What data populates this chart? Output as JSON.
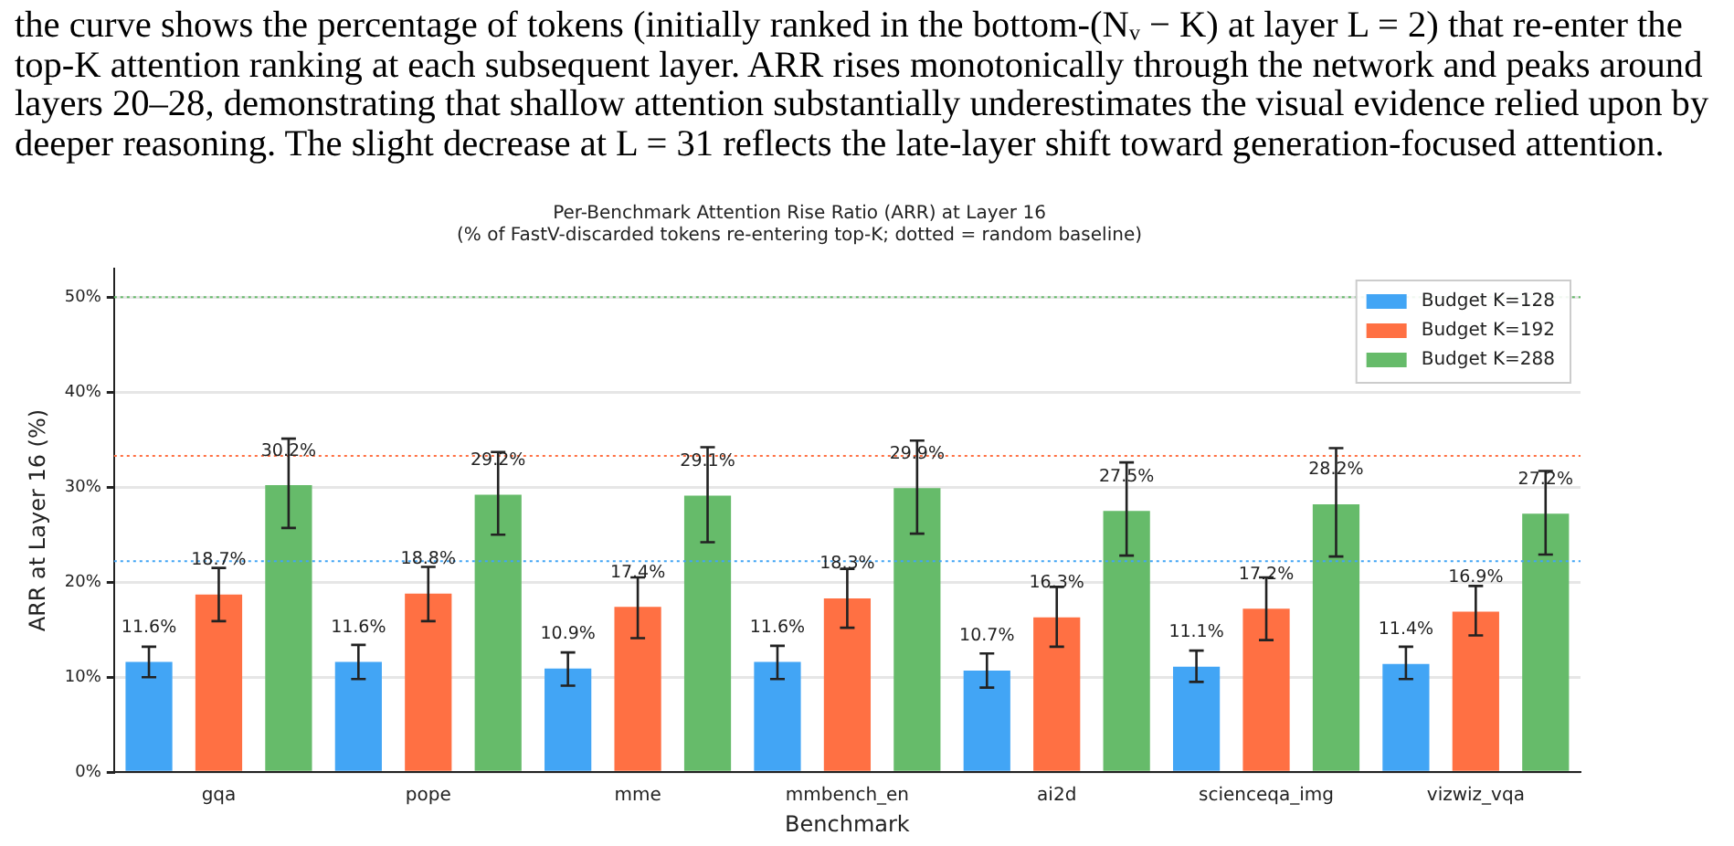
{
  "chart_data": {
    "type": "bar",
    "title": "Per-Benchmark Attention Rise Ratio (ARR) at Layer 16",
    "subtitle": "(% of FastV-discarded tokens re-entering top-K; dotted = random baseline)",
    "xlabel": "Benchmark",
    "ylabel": "ARR at Layer 16 (%)",
    "annotations": [
      "the curve shows the percentage of tokens (initially ranked in the bottom-(Nᵥ − K) at layer L = 2) that re-enter the",
      "top-K attention ranking at each subsequent layer. ARR rises monotonically through the network and peaks around",
      "layers 20–28, demonstrating that shallow attention substantially underestimates the visual evidence relied upon by",
      "deeper reasoning. The slight decrease at L = 31 reflects the late-layer shift toward generation-focused attention."
    ],
    "categories": [
      "gqa",
      "pope",
      "mme",
      "mmbench_en",
      "ai2d",
      "scienceqa_img",
      "vizwiz_vqa"
    ],
    "series": [
      {
        "name": "Budget K=128",
        "color": "#42a5f5",
        "values": [
          11.6,
          11.6,
          10.9,
          11.6,
          10.7,
          11.1,
          11.4
        ],
        "value_labels": [
          "11.6%",
          "11.6%",
          "10.9%",
          "11.6%",
          "10.7%",
          "11.1%",
          "11.4%"
        ],
        "errors": [
          [
            10.0,
            13.2
          ],
          [
            9.8,
            13.4
          ],
          [
            9.1,
            12.6
          ],
          [
            9.8,
            13.3
          ],
          [
            8.9,
            12.5
          ],
          [
            9.5,
            12.8
          ],
          [
            9.8,
            13.2
          ]
        ]
      },
      {
        "name": "Budget K=192",
        "color": "#ff7043",
        "values": [
          18.7,
          18.8,
          17.4,
          18.3,
          16.3,
          17.2,
          16.9
        ],
        "value_labels": [
          "18.7%",
          "18.8%",
          "17.4%",
          "18.3%",
          "16.3%",
          "17.2%",
          "16.9%"
        ],
        "errors": [
          [
            15.9,
            21.5
          ],
          [
            15.9,
            21.6
          ],
          [
            14.1,
            20.5
          ],
          [
            15.2,
            21.4
          ],
          [
            13.2,
            19.5
          ],
          [
            13.9,
            20.5
          ],
          [
            14.4,
            19.6
          ]
        ]
      },
      {
        "name": "Budget K=288",
        "color": "#66bb6a",
        "values": [
          30.2,
          29.2,
          29.1,
          29.9,
          27.5,
          28.2,
          27.2
        ],
        "value_labels": [
          "30.2%",
          "29.2%",
          "29.1%",
          "29.9%",
          "27.5%",
          "28.2%",
          "27.2%"
        ],
        "errors": [
          [
            25.7,
            35.1
          ],
          [
            25.0,
            33.7
          ],
          [
            24.2,
            34.2
          ],
          [
            25.1,
            34.9
          ],
          [
            22.8,
            32.6
          ],
          [
            22.7,
            34.1
          ],
          [
            22.9,
            31.7
          ]
        ]
      }
    ],
    "ylim": [
      0,
      53
    ],
    "yticks": [
      {
        "value": 0,
        "label": "0%"
      },
      {
        "value": 10,
        "label": "10%"
      },
      {
        "value": 20,
        "label": "20%"
      },
      {
        "value": 30,
        "label": "30%"
      },
      {
        "value": 40,
        "label": "40%"
      },
      {
        "value": 50,
        "label": "50%"
      }
    ],
    "ref_lines": [
      {
        "axis": "y",
        "value": 22.2,
        "color": "#42a5f5",
        "line_style": "dotted"
      },
      {
        "axis": "y",
        "value": 33.3,
        "color": "#ff7043",
        "line_style": "dotted"
      },
      {
        "axis": "y",
        "value": 50,
        "color": "#66bb6a",
        "line_style": "dotted"
      }
    ],
    "grid": "y",
    "legend": "top right"
  }
}
